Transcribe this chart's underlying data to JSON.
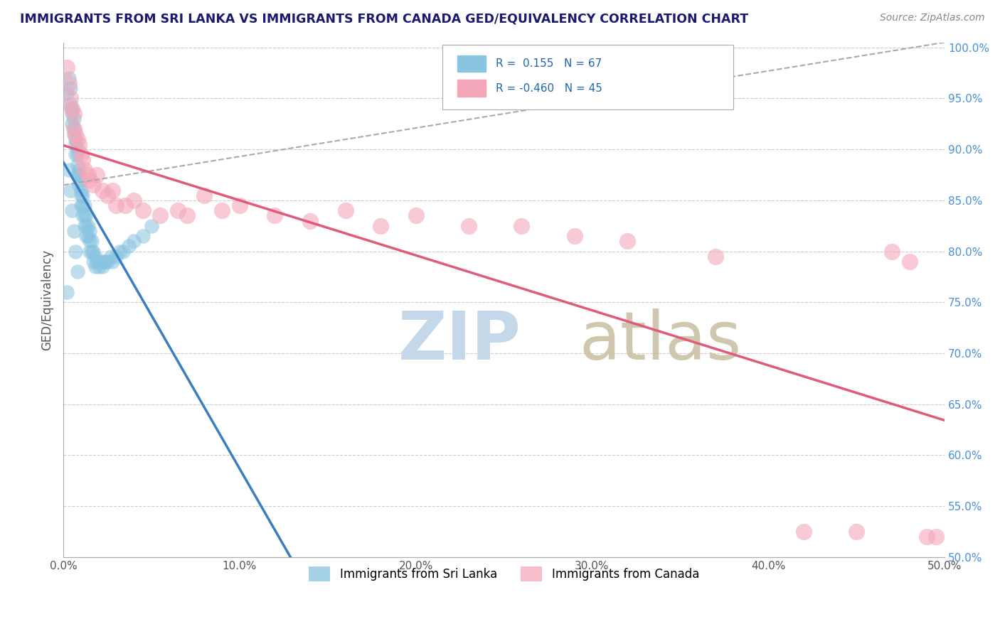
{
  "title": "IMMIGRANTS FROM SRI LANKA VS IMMIGRANTS FROM CANADA GED/EQUIVALENCY CORRELATION CHART",
  "source_text": "Source: ZipAtlas.com",
  "ylabel": "GED/Equivalency",
  "xlim": [
    0.0,
    0.5
  ],
  "ylim": [
    0.5,
    1.005
  ],
  "xtick_labels": [
    "0.0%",
    "",
    "10.0%",
    "",
    "20.0%",
    "",
    "30.0%",
    "",
    "40.0%",
    "",
    "50.0%"
  ],
  "xtick_values": [
    0.0,
    0.05,
    0.1,
    0.15,
    0.2,
    0.25,
    0.3,
    0.35,
    0.4,
    0.45,
    0.5
  ],
  "ytick_labels": [
    "50.0%",
    "55.0%",
    "60.0%",
    "65.0%",
    "70.0%",
    "75.0%",
    "80.0%",
    "85.0%",
    "90.0%",
    "95.0%",
    "100.0%"
  ],
  "ytick_values": [
    0.5,
    0.55,
    0.6,
    0.65,
    0.7,
    0.75,
    0.8,
    0.85,
    0.9,
    0.95,
    1.0
  ],
  "blue_R": 0.155,
  "blue_N": 67,
  "pink_R": -0.46,
  "pink_N": 45,
  "blue_color": "#89c4e1",
  "pink_color": "#f4a7b9",
  "blue_line_color": "#3a7ebf",
  "pink_line_color": "#e05a7a",
  "title_color": "#1a1a6e",
  "source_color": "#888888",
  "grid_color": "#cccccc",
  "legend_label_blue": "Immigrants from Sri Lanka",
  "legend_label_pink": "Immigrants from Canada",
  "blue_scatter_x": [
    0.002,
    0.003,
    0.004,
    0.004,
    0.005,
    0.005,
    0.005,
    0.006,
    0.006,
    0.006,
    0.007,
    0.007,
    0.007,
    0.008,
    0.008,
    0.008,
    0.008,
    0.009,
    0.009,
    0.009,
    0.01,
    0.01,
    0.01,
    0.01,
    0.011,
    0.011,
    0.011,
    0.012,
    0.012,
    0.012,
    0.013,
    0.013,
    0.013,
    0.014,
    0.014,
    0.015,
    0.015,
    0.015,
    0.016,
    0.016,
    0.017,
    0.017,
    0.018,
    0.018,
    0.019,
    0.02,
    0.021,
    0.022,
    0.023,
    0.024,
    0.025,
    0.027,
    0.028,
    0.03,
    0.032,
    0.034,
    0.037,
    0.04,
    0.045,
    0.05,
    0.003,
    0.004,
    0.005,
    0.006,
    0.007,
    0.008,
    0.002
  ],
  "blue_scatter_y": [
    0.955,
    0.97,
    0.96,
    0.945,
    0.94,
    0.935,
    0.925,
    0.93,
    0.92,
    0.915,
    0.91,
    0.905,
    0.895,
    0.9,
    0.895,
    0.885,
    0.875,
    0.88,
    0.875,
    0.865,
    0.87,
    0.86,
    0.855,
    0.845,
    0.855,
    0.845,
    0.835,
    0.845,
    0.835,
    0.825,
    0.835,
    0.825,
    0.815,
    0.825,
    0.815,
    0.82,
    0.81,
    0.8,
    0.81,
    0.8,
    0.8,
    0.79,
    0.795,
    0.785,
    0.79,
    0.785,
    0.79,
    0.785,
    0.79,
    0.79,
    0.79,
    0.795,
    0.79,
    0.795,
    0.8,
    0.8,
    0.805,
    0.81,
    0.815,
    0.825,
    0.88,
    0.86,
    0.84,
    0.82,
    0.8,
    0.78,
    0.76
  ],
  "pink_scatter_x": [
    0.002,
    0.003,
    0.004,
    0.005,
    0.006,
    0.006,
    0.007,
    0.008,
    0.009,
    0.01,
    0.011,
    0.012,
    0.014,
    0.015,
    0.017,
    0.019,
    0.022,
    0.025,
    0.028,
    0.03,
    0.035,
    0.04,
    0.045,
    0.055,
    0.065,
    0.07,
    0.08,
    0.09,
    0.1,
    0.12,
    0.14,
    0.16,
    0.18,
    0.2,
    0.23,
    0.26,
    0.29,
    0.32,
    0.37,
    0.42,
    0.45,
    0.47,
    0.48,
    0.49,
    0.495
  ],
  "pink_scatter_y": [
    0.98,
    0.965,
    0.95,
    0.94,
    0.935,
    0.92,
    0.915,
    0.91,
    0.905,
    0.895,
    0.89,
    0.88,
    0.875,
    0.87,
    0.865,
    0.875,
    0.86,
    0.855,
    0.86,
    0.845,
    0.845,
    0.85,
    0.84,
    0.835,
    0.84,
    0.835,
    0.855,
    0.84,
    0.845,
    0.835,
    0.83,
    0.84,
    0.825,
    0.835,
    0.825,
    0.825,
    0.815,
    0.81,
    0.795,
    0.525,
    0.525,
    0.8,
    0.79,
    0.52,
    0.52
  ],
  "figsize": [
    14.06,
    8.92
  ],
  "dpi": 100
}
